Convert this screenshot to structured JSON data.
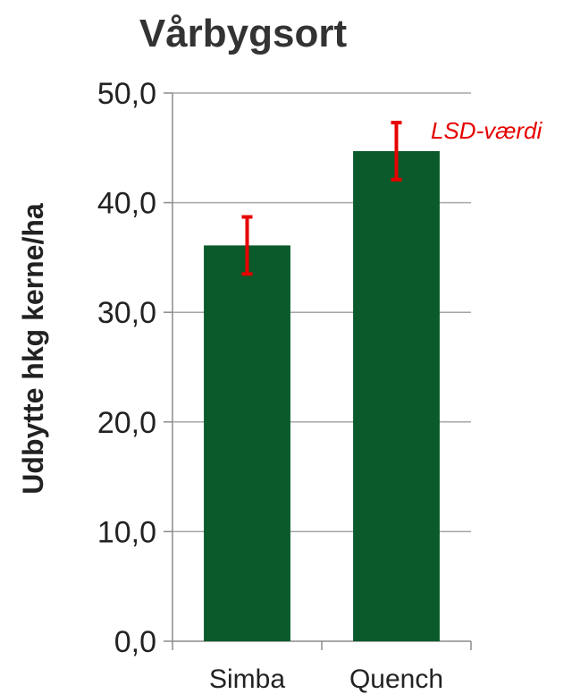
{
  "chart_data": {
    "type": "bar",
    "title": "Vårbygsort",
    "xlabel": "",
    "ylabel": "Udbytte hkg kerne/ha",
    "categories": [
      "Simba",
      "Quench"
    ],
    "values": [
      36.1,
      44.7
    ],
    "error_bars": [
      {
        "low": 33.5,
        "high": 38.7
      },
      {
        "low": 42.1,
        "high": 47.3
      }
    ],
    "ylim": [
      0,
      50
    ],
    "yticks": [
      "0,0",
      "10,0",
      "20,0",
      "30,0",
      "40,0",
      "50,0"
    ],
    "ytick_values": [
      0,
      10,
      20,
      30,
      40,
      50
    ],
    "grid": true,
    "annotation": "LSD-værdi",
    "colors": {
      "bar": "#0b5a2b",
      "error": "#e60000",
      "grid": "#a6a6a6",
      "axis": "#8c8c8c"
    }
  }
}
